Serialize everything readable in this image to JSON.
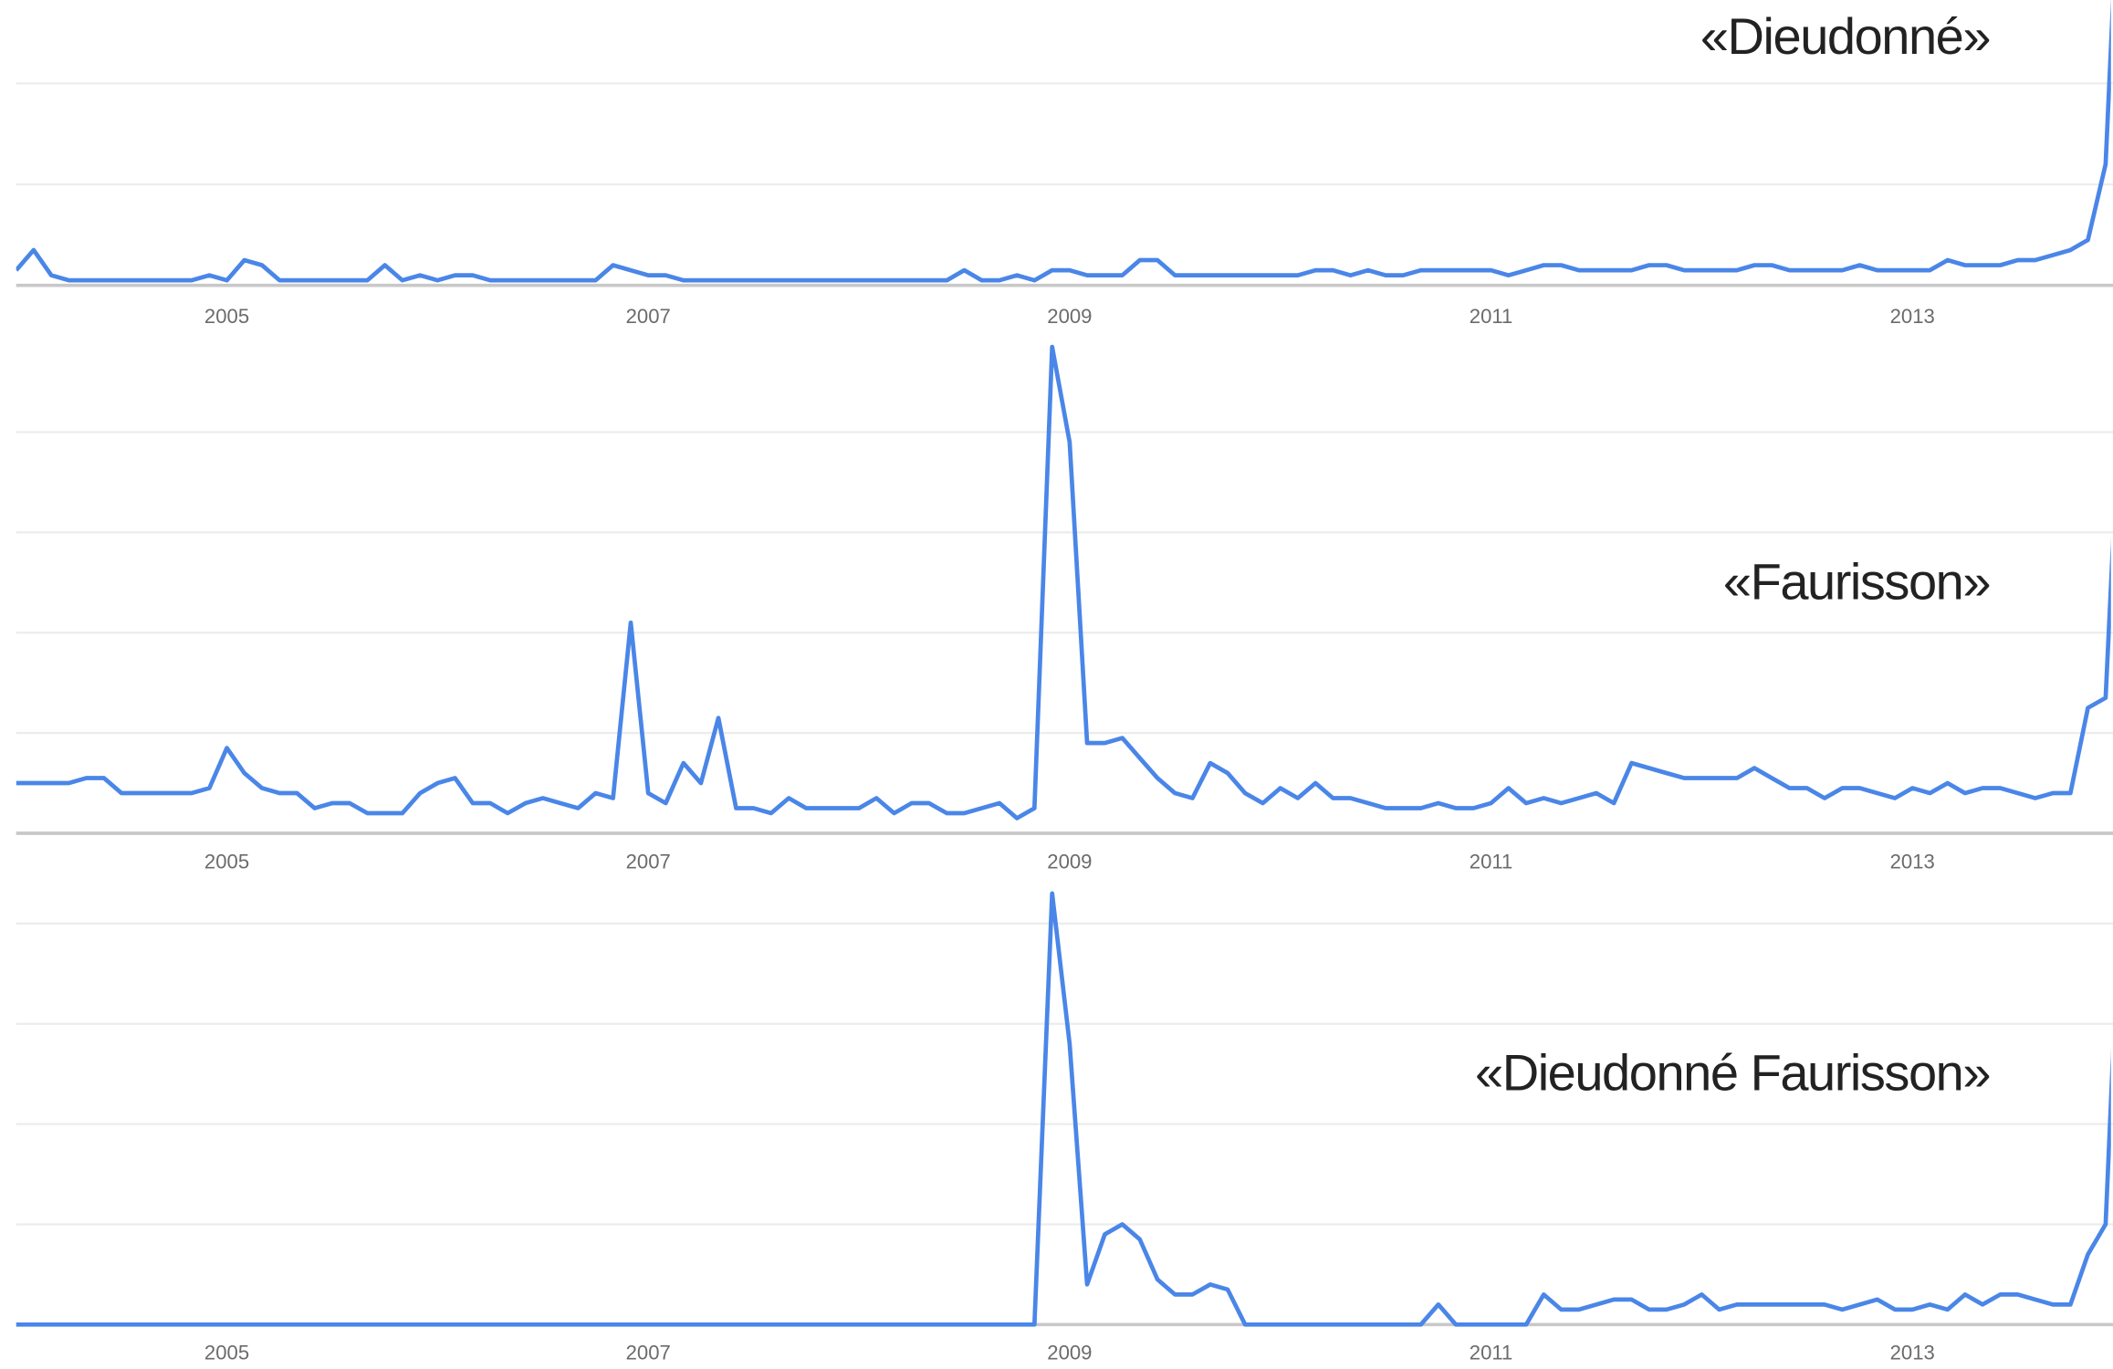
{
  "chart_data": [
    {
      "type": "line",
      "title": "«Dieudonné»",
      "color": "#4a86e8",
      "grid": true,
      "xlim": [
        2004,
        2014
      ],
      "ylim": [
        0,
        56
      ],
      "xticks": [
        2005,
        2007,
        2009,
        2011,
        2013
      ],
      "yticks": [
        0,
        20,
        40
      ],
      "x": [
        2004,
        2004.083,
        2004.167,
        2004.25,
        2004.333,
        2004.417,
        2004.5,
        2004.583,
        2004.667,
        2004.75,
        2004.833,
        2004.917,
        2005,
        2005.083,
        2005.167,
        2005.25,
        2005.333,
        2005.417,
        2005.5,
        2005.583,
        2005.667,
        2005.75,
        2005.833,
        2005.917,
        2006,
        2006.083,
        2006.167,
        2006.25,
        2006.333,
        2006.417,
        2006.5,
        2006.583,
        2006.667,
        2006.75,
        2006.833,
        2006.917,
        2007,
        2007.083,
        2007.167,
        2007.25,
        2007.333,
        2007.417,
        2007.5,
        2007.583,
        2007.667,
        2007.75,
        2007.833,
        2007.917,
        2008,
        2008.083,
        2008.167,
        2008.25,
        2008.333,
        2008.417,
        2008.5,
        2008.583,
        2008.667,
        2008.75,
        2008.833,
        2008.917,
        2009,
        2009.083,
        2009.167,
        2009.25,
        2009.333,
        2009.417,
        2009.5,
        2009.583,
        2009.667,
        2009.75,
        2009.833,
        2009.917,
        2010,
        2010.083,
        2010.167,
        2010.25,
        2010.333,
        2010.417,
        2010.5,
        2010.583,
        2010.667,
        2010.75,
        2010.833,
        2010.917,
        2011,
        2011.083,
        2011.167,
        2011.25,
        2011.333,
        2011.417,
        2011.5,
        2011.583,
        2011.667,
        2011.75,
        2011.833,
        2011.917,
        2012,
        2012.083,
        2012.167,
        2012.25,
        2012.333,
        2012.417,
        2012.5,
        2012.583,
        2012.667,
        2012.75,
        2012.833,
        2012.917,
        2013,
        2013.083,
        2013.167,
        2013.25,
        2013.333,
        2013.417,
        2013.5,
        2013.583,
        2013.667,
        2013.75,
        2013.833,
        2013.917,
        2014
      ],
      "values": [
        3,
        7,
        2,
        1,
        1,
        1,
        1,
        1,
        1,
        1,
        1,
        2,
        1,
        5,
        4,
        1,
        1,
        1,
        1,
        1,
        1,
        4,
        1,
        2,
        1,
        2,
        2,
        1,
        1,
        1,
        1,
        1,
        1,
        1,
        4,
        3,
        2,
        2,
        1,
        1,
        1,
        1,
        1,
        1,
        1,
        1,
        1,
        1,
        1,
        1,
        1,
        1,
        1,
        1,
        3,
        1,
        1,
        2,
        1,
        3,
        3,
        2,
        2,
        2,
        5,
        5,
        2,
        2,
        2,
        2,
        2,
        2,
        2,
        2,
        3,
        3,
        2,
        3,
        2,
        2,
        3,
        3,
        3,
        3,
        3,
        2,
        3,
        4,
        4,
        3,
        3,
        3,
        3,
        4,
        4,
        3,
        3,
        3,
        3,
        4,
        4,
        3,
        3,
        3,
        3,
        4,
        3,
        3,
        3,
        3,
        5,
        4,
        4,
        4,
        5,
        5,
        6,
        7,
        9,
        24,
        100
      ]
    },
    {
      "type": "line",
      "title": "«Faurisson»",
      "color": "#4a86e8",
      "grid": true,
      "xlim": [
        2004,
        2014
      ],
      "ylim": [
        0,
        100
      ],
      "xticks": [
        2005,
        2007,
        2009,
        2011,
        2013
      ],
      "yticks": [
        0,
        20,
        40,
        60,
        80
      ],
      "x": [
        2004,
        2004.083,
        2004.167,
        2004.25,
        2004.333,
        2004.417,
        2004.5,
        2004.583,
        2004.667,
        2004.75,
        2004.833,
        2004.917,
        2005,
        2005.083,
        2005.167,
        2005.25,
        2005.333,
        2005.417,
        2005.5,
        2005.583,
        2005.667,
        2005.75,
        2005.833,
        2005.917,
        2006,
        2006.083,
        2006.167,
        2006.25,
        2006.333,
        2006.417,
        2006.5,
        2006.583,
        2006.667,
        2006.75,
        2006.833,
        2006.917,
        2007,
        2007.083,
        2007.167,
        2007.25,
        2007.333,
        2007.417,
        2007.5,
        2007.583,
        2007.667,
        2007.75,
        2007.833,
        2007.917,
        2008,
        2008.083,
        2008.167,
        2008.25,
        2008.333,
        2008.417,
        2008.5,
        2008.583,
        2008.667,
        2008.75,
        2008.833,
        2008.917,
        2009,
        2009.083,
        2009.167,
        2009.25,
        2009.333,
        2009.417,
        2009.5,
        2009.583,
        2009.667,
        2009.75,
        2009.833,
        2009.917,
        2010,
        2010.083,
        2010.167,
        2010.25,
        2010.333,
        2010.417,
        2010.5,
        2010.583,
        2010.667,
        2010.75,
        2010.833,
        2010.917,
        2011,
        2011.083,
        2011.167,
        2011.25,
        2011.333,
        2011.417,
        2011.5,
        2011.583,
        2011.667,
        2011.75,
        2011.833,
        2011.917,
        2012,
        2012.083,
        2012.167,
        2012.25,
        2012.333,
        2012.417,
        2012.5,
        2012.583,
        2012.667,
        2012.75,
        2012.833,
        2012.917,
        2013,
        2013.083,
        2013.167,
        2013.25,
        2013.333,
        2013.417,
        2013.5,
        2013.583,
        2013.667,
        2013.75,
        2013.833,
        2013.917,
        2014
      ],
      "values": [
        10,
        10,
        10,
        10,
        11,
        11,
        8,
        8,
        8,
        8,
        8,
        9,
        17,
        12,
        9,
        8,
        8,
        5,
        6,
        6,
        4,
        4,
        4,
        8,
        10,
        11,
        6,
        6,
        4,
        6,
        7,
        6,
        5,
        8,
        7,
        42,
        8,
        6,
        14,
        10,
        23,
        5,
        5,
        4,
        7,
        5,
        5,
        5,
        5,
        7,
        4,
        6,
        6,
        4,
        4,
        5,
        6,
        3,
        5,
        97,
        78,
        18,
        18,
        19,
        15,
        11,
        8,
        7,
        14,
        12,
        8,
        6,
        9,
        7,
        10,
        7,
        7,
        6,
        5,
        5,
        5,
        6,
        5,
        5,
        6,
        9,
        6,
        7,
        6,
        7,
        8,
        6,
        14,
        13,
        12,
        11,
        11,
        11,
        11,
        13,
        11,
        9,
        9,
        7,
        9,
        9,
        8,
        7,
        9,
        8,
        10,
        8,
        9,
        9,
        8,
        7,
        8,
        8,
        25,
        27,
        100
      ]
    },
    {
      "type": "line",
      "title": "«Dieudonné Faurisson»",
      "color": "#4a86e8",
      "grid": true,
      "xlim": [
        2004,
        2014
      ],
      "ylim": [
        0,
        87
      ],
      "xticks": [
        2005,
        2007,
        2009,
        2011,
        2013
      ],
      "yticks": [
        0,
        20,
        40,
        60,
        80
      ],
      "x": [
        2004,
        2004.083,
        2004.167,
        2004.25,
        2004.333,
        2004.417,
        2004.5,
        2004.583,
        2004.667,
        2004.75,
        2004.833,
        2004.917,
        2005,
        2005.083,
        2005.167,
        2005.25,
        2005.333,
        2005.417,
        2005.5,
        2005.583,
        2005.667,
        2005.75,
        2005.833,
        2005.917,
        2006,
        2006.083,
        2006.167,
        2006.25,
        2006.333,
        2006.417,
        2006.5,
        2006.583,
        2006.667,
        2006.75,
        2006.833,
        2006.917,
        2007,
        2007.083,
        2007.167,
        2007.25,
        2007.333,
        2007.417,
        2007.5,
        2007.583,
        2007.667,
        2007.75,
        2007.833,
        2007.917,
        2008,
        2008.083,
        2008.167,
        2008.25,
        2008.333,
        2008.417,
        2008.5,
        2008.583,
        2008.667,
        2008.75,
        2008.833,
        2008.917,
        2009,
        2009.083,
        2009.167,
        2009.25,
        2009.333,
        2009.417,
        2009.5,
        2009.583,
        2009.667,
        2009.75,
        2009.833,
        2009.917,
        2010,
        2010.083,
        2010.167,
        2010.25,
        2010.333,
        2010.417,
        2010.5,
        2010.583,
        2010.667,
        2010.75,
        2010.833,
        2010.917,
        2011,
        2011.083,
        2011.167,
        2011.25,
        2011.333,
        2011.417,
        2011.5,
        2011.583,
        2011.667,
        2011.75,
        2011.833,
        2011.917,
        2012,
        2012.083,
        2012.167,
        2012.25,
        2012.333,
        2012.417,
        2012.5,
        2012.583,
        2012.667,
        2012.75,
        2012.833,
        2012.917,
        2013,
        2013.083,
        2013.167,
        2013.25,
        2013.333,
        2013.417,
        2013.5,
        2013.583,
        2013.667,
        2013.75,
        2013.833,
        2013.917,
        2014
      ],
      "values": [
        0,
        0,
        0,
        0,
        0,
        0,
        0,
        0,
        0,
        0,
        0,
        0,
        0,
        0,
        0,
        0,
        0,
        0,
        0,
        0,
        0,
        0,
        0,
        0,
        0,
        0,
        0,
        0,
        0,
        0,
        0,
        0,
        0,
        0,
        0,
        0,
        0,
        0,
        0,
        0,
        0,
        0,
        0,
        0,
        0,
        0,
        0,
        0,
        0,
        0,
        0,
        0,
        0,
        0,
        0,
        0,
        0,
        0,
        0,
        86,
        56,
        8,
        18,
        20,
        17,
        9,
        6,
        6,
        8,
        7,
        0,
        0,
        0,
        0,
        0,
        0,
        0,
        0,
        0,
        0,
        0,
        4,
        0,
        0,
        0,
        0,
        0,
        6,
        3,
        3,
        4,
        5,
        5,
        3,
        3,
        4,
        6,
        3,
        4,
        4,
        4,
        4,
        4,
        4,
        3,
        4,
        5,
        3,
        3,
        4,
        3,
        6,
        4,
        6,
        6,
        5,
        4,
        4,
        14,
        20,
        100
      ]
    }
  ]
}
